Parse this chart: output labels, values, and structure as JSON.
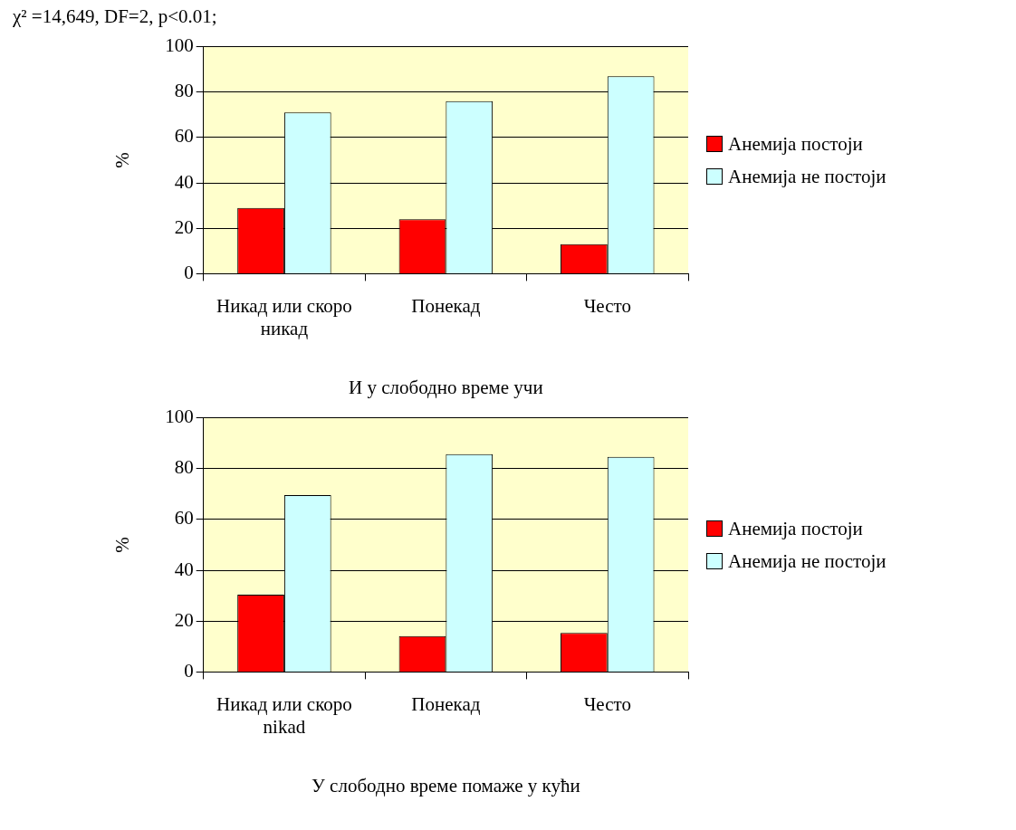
{
  "chart_data": [
    {
      "type": "bar",
      "xlabel": "И у слободно време учи",
      "ylabel": "%",
      "annotations": [
        "χ² =14,649, DF=2, p<0.01;"
      ],
      "categories": [
        "Никад или скоро никад",
        "Понекад",
        "Често"
      ],
      "series": [
        {
          "name": "Анемија постоји",
          "color": "#ff0000",
          "values": [
            29,
            24,
            13
          ]
        },
        {
          "name": "Анемија не постоји",
          "color": "#ccffff",
          "values": [
            71,
            76,
            87
          ]
        }
      ],
      "ylim": [
        0,
        100
      ],
      "yticks": [
        0,
        20,
        40,
        60,
        80,
        100
      ],
      "grid": "y",
      "legend": "right"
    },
    {
      "type": "bar",
      "xlabel": "У слободно време помаже у кући",
      "ylabel": "%",
      "categories": [
        "Никад или скоро nikad",
        "Понекад",
        "Често"
      ],
      "series": [
        {
          "name": "Анемија постоји",
          "color": "#ff0000",
          "values": [
            30.4,
            14.1,
            15.4
          ]
        },
        {
          "name": "Анемија не постоји",
          "color": "#ccffff",
          "values": [
            69.6,
            85.7,
            84.6
          ]
        }
      ],
      "ylim": [
        0,
        100
      ],
      "yticks": [
        0,
        20,
        40,
        60,
        80,
        100
      ],
      "grid": "y",
      "legend": "right"
    }
  ]
}
